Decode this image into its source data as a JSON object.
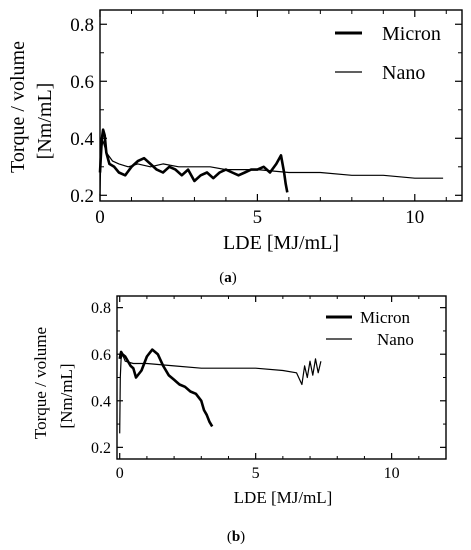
{
  "chart_data": [
    {
      "type": "line",
      "panel": "(a)",
      "panel_letter": "a",
      "xlabel": "LDE [MJ/mL]",
      "ylabel_line1": "Torque / volume",
      "ylabel_line2": "[Nm/mL]",
      "xlim": [
        0,
        11.5
      ],
      "ylim": [
        0.18,
        0.85
      ],
      "xticks": [
        0,
        5,
        10
      ],
      "yticks": [
        0.2,
        0.4,
        0.6,
        0.8
      ],
      "ytick_labels": [
        "0.2",
        "0.4",
        "0.6",
        "0.8"
      ],
      "legend_position": "top-right",
      "series": [
        {
          "name": "Micron",
          "line": "thick",
          "x": [
            0.0,
            0.03,
            0.06,
            0.1,
            0.15,
            0.2,
            0.3,
            0.45,
            0.6,
            0.8,
            1.0,
            1.2,
            1.4,
            1.6,
            1.8,
            2.0,
            2.2,
            2.4,
            2.6,
            2.8,
            3.0,
            3.2,
            3.4,
            3.6,
            3.8,
            4.0,
            4.2,
            4.4,
            4.6,
            4.8,
            5.0,
            5.2,
            5.4,
            5.6,
            5.75,
            5.85,
            5.9,
            5.95
          ],
          "y": [
            0.28,
            0.34,
            0.4,
            0.43,
            0.41,
            0.35,
            0.31,
            0.3,
            0.28,
            0.27,
            0.3,
            0.32,
            0.33,
            0.31,
            0.29,
            0.28,
            0.3,
            0.29,
            0.27,
            0.29,
            0.25,
            0.27,
            0.28,
            0.26,
            0.28,
            0.29,
            0.28,
            0.27,
            0.28,
            0.29,
            0.29,
            0.3,
            0.28,
            0.31,
            0.34,
            0.28,
            0.24,
            0.21
          ]
        },
        {
          "name": "Nano",
          "line": "thin",
          "x": [
            0.0,
            0.02,
            0.05,
            0.1,
            0.2,
            0.4,
            0.6,
            0.9,
            1.2,
            1.6,
            2.0,
            2.5,
            3.0,
            3.5,
            4.0,
            5.0,
            6.0,
            7.0,
            8.0,
            9.0,
            10.0,
            10.9
          ],
          "y": [
            0.2,
            0.3,
            0.37,
            0.39,
            0.35,
            0.32,
            0.31,
            0.3,
            0.31,
            0.3,
            0.31,
            0.3,
            0.3,
            0.3,
            0.29,
            0.29,
            0.28,
            0.28,
            0.27,
            0.27,
            0.26,
            0.26
          ]
        }
      ]
    },
    {
      "type": "line",
      "panel": "(b)",
      "panel_letter": "b",
      "xlabel": "LDE [MJ/mL]",
      "ylabel_line1": "Torque / volume",
      "ylabel_line2": "[Nm/mL]",
      "xlim": [
        -0.1,
        12
      ],
      "ylim": [
        0.15,
        0.85
      ],
      "xticks": [
        0,
        5,
        10
      ],
      "yticks": [
        0.2,
        0.4,
        0.6,
        0.8
      ],
      "ytick_labels": [
        "0.2",
        "0.4",
        "0.6",
        "0.8"
      ],
      "legend_position": "top-right",
      "series": [
        {
          "name": "Micron",
          "line": "thick",
          "x": [
            0.0,
            0.05,
            0.1,
            0.2,
            0.3,
            0.4,
            0.5,
            0.6,
            0.8,
            1.0,
            1.2,
            1.4,
            1.6,
            1.8,
            2.0,
            2.2,
            2.4,
            2.6,
            2.8,
            3.0,
            3.1,
            3.2,
            3.3,
            3.4
          ],
          "y": [
            0.58,
            0.61,
            0.6,
            0.59,
            0.57,
            0.55,
            0.54,
            0.5,
            0.53,
            0.59,
            0.62,
            0.6,
            0.55,
            0.51,
            0.49,
            0.47,
            0.46,
            0.44,
            0.43,
            0.4,
            0.36,
            0.34,
            0.31,
            0.29
          ]
        },
        {
          "name": "Nano",
          "line": "thin",
          "x": [
            0.0,
            0.02,
            0.05,
            0.1,
            0.2,
            0.5,
            1.0,
            2.0,
            3.0,
            4.0,
            5.0,
            6.0,
            6.5,
            6.7,
            6.8,
            6.9,
            7.0,
            7.1,
            7.2,
            7.3,
            7.4
          ],
          "y": [
            0.26,
            0.5,
            0.58,
            0.6,
            0.57,
            0.56,
            0.56,
            0.55,
            0.54,
            0.54,
            0.54,
            0.53,
            0.52,
            0.47,
            0.55,
            0.5,
            0.57,
            0.51,
            0.58,
            0.52,
            0.57
          ]
        }
      ]
    }
  ]
}
